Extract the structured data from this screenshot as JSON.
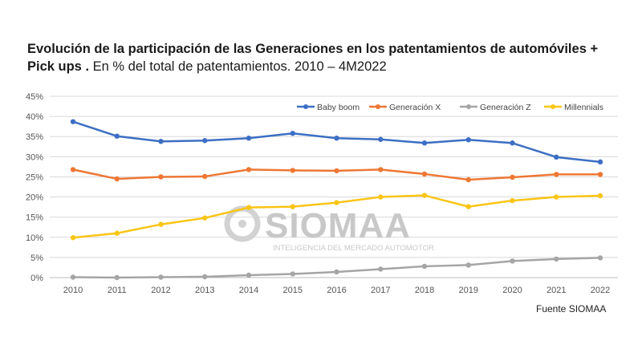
{
  "title": {
    "bold": "Evolución de la participación de las Generaciones en los patentamientos de automóviles + Pick ups .",
    "normal": " En % del total de patentamientos. 2010 – 4M2022"
  },
  "source": "Fuente SIOMAA",
  "watermark": {
    "name": "SIOMAA",
    "tagline": "INTELIGENCIA DEL MERCADO AUTOMOTOR"
  },
  "chart_data": {
    "type": "line",
    "categories": [
      "2010",
      "2011",
      "2012",
      "2013",
      "2014",
      "2015",
      "2016",
      "2017",
      "2018",
      "2019",
      "2020",
      "2021",
      "2022"
    ],
    "ylim": [
      0,
      45
    ],
    "yticks": [
      "0%",
      "5%",
      "10%",
      "15%",
      "20%",
      "25%",
      "30%",
      "35%",
      "40%",
      "45%"
    ],
    "grid": true,
    "legend_position": "top-right",
    "series": [
      {
        "name": "Baby boom",
        "color": "#3c6fc4",
        "values": [
          38.7,
          35.1,
          33.8,
          34.0,
          34.6,
          35.8,
          34.6,
          34.3,
          33.4,
          34.2,
          33.4,
          29.9,
          28.7
        ]
      },
      {
        "name": "Generación X",
        "color": "#ee7733",
        "values": [
          26.8,
          24.5,
          25.0,
          25.1,
          26.8,
          26.6,
          26.5,
          26.8,
          25.7,
          24.3,
          24.9,
          25.6,
          25.6
        ]
      },
      {
        "name": "Generación Z",
        "color": "#a5a5a5",
        "values": [
          0.1,
          0.0,
          0.1,
          0.2,
          0.6,
          0.9,
          1.4,
          2.1,
          2.8,
          3.1,
          4.1,
          4.6,
          4.9
        ]
      },
      {
        "name": "Millennials",
        "color": "#fac515",
        "values": [
          9.9,
          11.0,
          13.2,
          14.8,
          17.4,
          17.6,
          18.6,
          20.0,
          20.4,
          17.6,
          19.1,
          20.0,
          20.3
        ]
      }
    ]
  }
}
